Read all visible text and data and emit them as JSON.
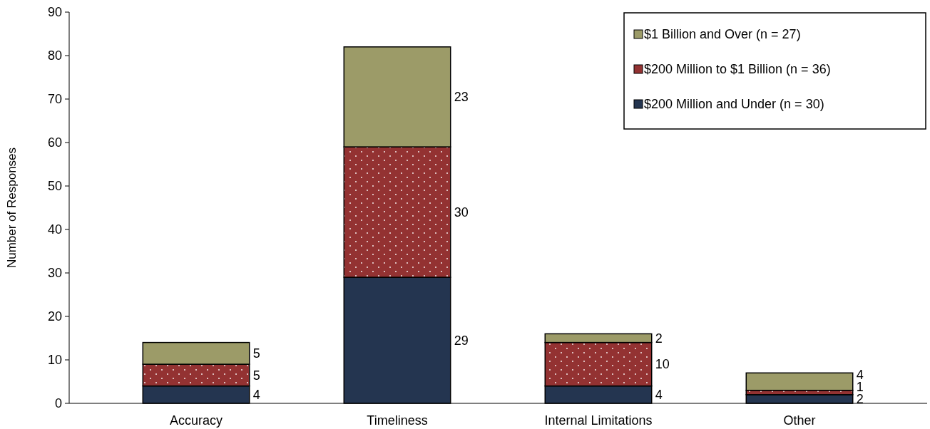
{
  "chart_data": {
    "type": "bar",
    "stacked": true,
    "ylabel": "Number of Responses",
    "categories": [
      "Accuracy",
      "Timeliness",
      "Internal Limitations",
      "Other"
    ],
    "series": [
      {
        "name": "$200 Million and Under (n = 30)",
        "color": "#243550",
        "values": [
          4,
          29,
          4,
          2
        ]
      },
      {
        "name": "$200 Million to $1 Billion (n = 36)",
        "color": "#933232",
        "values": [
          5,
          30,
          10,
          1
        ]
      },
      {
        "name": "$1 Billion and Over (n = 27)",
        "color": "#9c9b68",
        "values": [
          5,
          23,
          2,
          4
        ]
      }
    ],
    "ylim": [
      0,
      90
    ],
    "yticks": [
      0,
      10,
      20,
      30,
      40,
      50,
      60,
      70,
      80,
      90
    ],
    "data_labels": true,
    "legend": "top right",
    "grid": false
  }
}
